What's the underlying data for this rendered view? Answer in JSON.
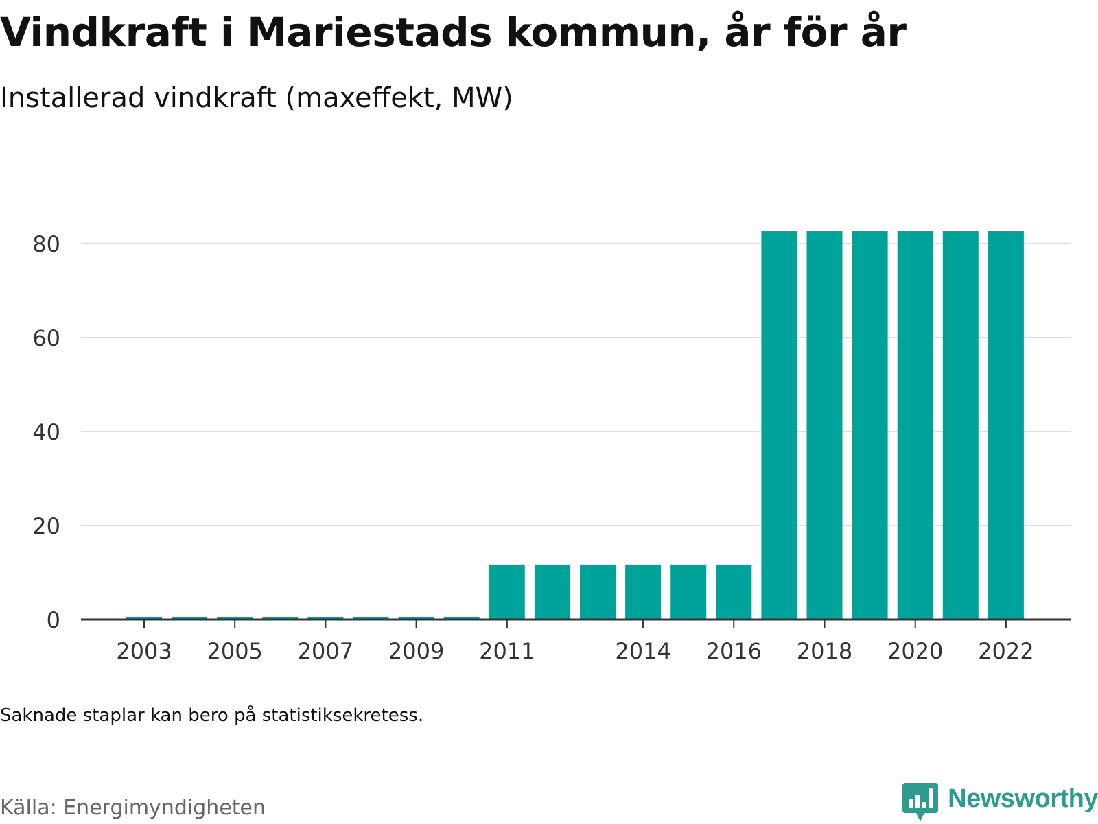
{
  "header": {
    "title": "Vindkraft i Mariestads kommun, år för år",
    "subtitle": "Installerad vindkraft (maxeffekt, MW)"
  },
  "footer": {
    "note": "Saknade staplar kan bero på statistiksekretess.",
    "source": "Källa: Energimyndigheten",
    "brand": "Newsworthy"
  },
  "colors": {
    "bar": "#00a39a",
    "grid": "#dddddd",
    "axis": "#333333",
    "brand": "#2d9b8e"
  },
  "chart_data": {
    "type": "bar",
    "title": "Vindkraft i Mariestads kommun, år för år",
    "subtitle": "Installerad vindkraft (maxeffekt, MW)",
    "categories": [
      2003,
      2004,
      2005,
      2006,
      2007,
      2008,
      2009,
      2010,
      2011,
      2012,
      2013,
      2014,
      2015,
      2016,
      2017,
      2018,
      2019,
      2020,
      2021,
      2022
    ],
    "values": [
      0.6,
      0.6,
      0.6,
      0.6,
      0.6,
      0.6,
      0.6,
      0.6,
      11.7,
      11.7,
      11.7,
      11.7,
      11.7,
      11.7,
      82.7,
      82.7,
      82.7,
      82.7,
      82.7,
      82.7
    ],
    "x_tick_labels": [
      "2003",
      "2005",
      "2007",
      "2009",
      "2011",
      "2014",
      "2016",
      "2018",
      "2020",
      "2022"
    ],
    "y_ticks": [
      0,
      20,
      40,
      60,
      80
    ],
    "ylim": [
      0,
      88
    ],
    "xlabel": "",
    "ylabel": "",
    "grid": "horizontal",
    "legend": "none"
  }
}
